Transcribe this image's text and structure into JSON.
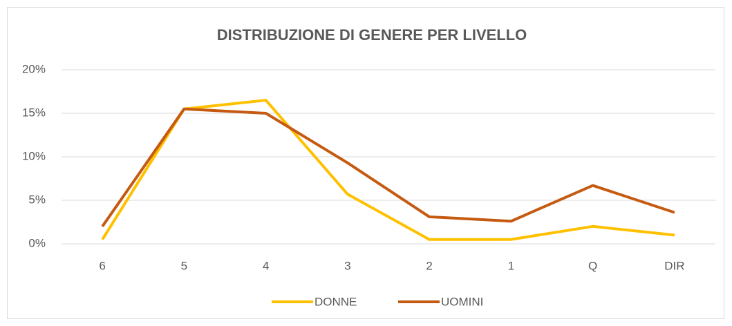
{
  "chart_data": {
    "type": "line",
    "title": "DISTRIBUZIONE DI GENERE PER LIVELLO",
    "categories": [
      "6",
      "5",
      "4",
      "3",
      "2",
      "1",
      "Q",
      "DIR"
    ],
    "series": [
      {
        "name": "DONNE",
        "color": "#ffc000",
        "values": [
          0.5,
          15.5,
          16.5,
          5.7,
          0.5,
          0.5,
          2.0,
          1.0
        ]
      },
      {
        "name": "UOMINI",
        "color": "#c55a11",
        "values": [
          2.0,
          15.5,
          15.0,
          9.3,
          3.1,
          2.6,
          6.7,
          3.6
        ]
      }
    ],
    "ylim": [
      0,
      20
    ],
    "yticks": [
      {
        "value": 0,
        "label": "0%"
      },
      {
        "value": 5,
        "label": "5%"
      },
      {
        "value": 10,
        "label": "10%"
      },
      {
        "value": 15,
        "label": "15%"
      },
      {
        "value": 20,
        "label": "20%"
      }
    ],
    "grid": true,
    "legend": "bottom"
  }
}
